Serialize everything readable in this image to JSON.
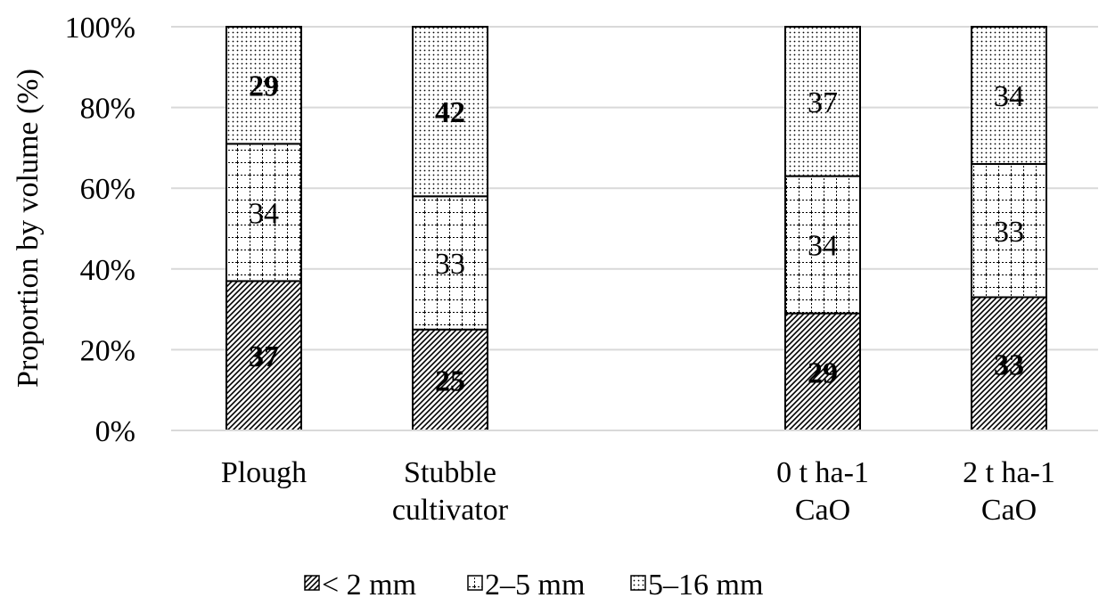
{
  "chart_data": {
    "type": "bar",
    "stacked": true,
    "ylabel": "Proportion by volume (%)",
    "ylim": [
      0,
      100
    ],
    "yticks": [
      "0%",
      "20%",
      "40%",
      "60%",
      "80%",
      "100%"
    ],
    "grid": true,
    "legend_position": "bottom",
    "categories": [
      {
        "lines": [
          "Plough"
        ]
      },
      {
        "lines": [
          "Stubble",
          "cultivator"
        ]
      },
      {
        "lines": [
          "0 t ha-1",
          "CaO"
        ]
      },
      {
        "lines": [
          "2 t ha-1",
          "CaO"
        ]
      }
    ],
    "series": [
      {
        "name": "< 2 mm",
        "pattern": "diagonal-hatch",
        "values": [
          37,
          25,
          29,
          33
        ],
        "bold": [
          true,
          true,
          true,
          true
        ]
      },
      {
        "name": "2–5 mm",
        "pattern": "grid",
        "values": [
          34,
          33,
          34,
          33
        ],
        "bold": [
          false,
          false,
          false,
          false
        ]
      },
      {
        "name": "5–16 mm",
        "pattern": "dots",
        "values": [
          29,
          42,
          37,
          34
        ],
        "bold": [
          true,
          true,
          false,
          false
        ]
      }
    ],
    "colors": {
      "stroke": "#000000",
      "gridline": "#d9d9d9",
      "fill": "#ffffff"
    }
  }
}
